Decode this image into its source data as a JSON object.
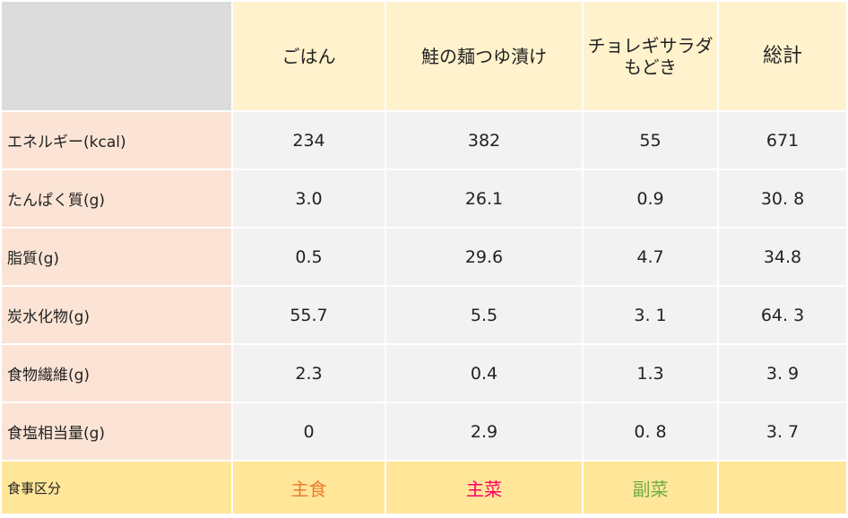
{
  "table": {
    "headers": [
      {
        "label": "ごはん"
      },
      {
        "label": "鮭の麺つゆ漬け"
      },
      {
        "label": "チョレギサラダ\nもどき"
      },
      {
        "label": "総計"
      }
    ],
    "rows": [
      {
        "label": "エネルギー(kcal)",
        "values": [
          "234",
          "382",
          "55",
          "671"
        ]
      },
      {
        "label": "たんぱく質(g)",
        "values": [
          "3.0",
          "26.1",
          "0.9",
          "30. 8"
        ]
      },
      {
        "label": "脂質(g)",
        "values": [
          "0.5",
          "29.6",
          "4.7",
          "34.8"
        ]
      },
      {
        "label": "炭水化物(g)",
        "values": [
          "55.7",
          "5.5",
          "3. 1",
          "64. 3"
        ]
      },
      {
        "label": "食物繊維(g)",
        "values": [
          "2.3",
          "0.4",
          "1.3",
          "3. 9"
        ]
      },
      {
        "label": "食塩相当量(g)",
        "values": [
          "0",
          "2.9",
          "0. 8",
          "3. 7"
        ]
      }
    ],
    "footer": {
      "label": "食事区分",
      "values": [
        {
          "text": "主食",
          "color": "#ed7d31"
        },
        {
          "text": "主菜",
          "color": "#ff0066"
        },
        {
          "text": "副菜",
          "color": "#70ad47"
        },
        {
          "text": "",
          "color": "#000000"
        }
      ]
    }
  }
}
